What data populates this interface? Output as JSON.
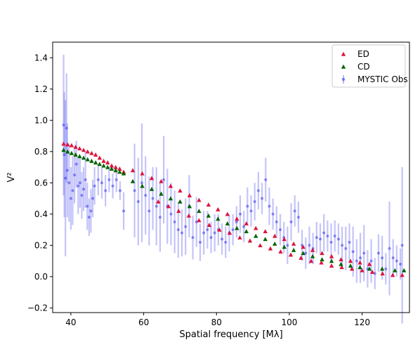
{
  "chart_data": {
    "type": "scatter",
    "title": "",
    "xlabel": "Spatial frequency [Mλ]",
    "ylabel": "V²",
    "xlim": [
      35,
      133
    ],
    "ylim": [
      -0.23,
      1.5
    ],
    "xticks": [
      {
        "value": 40,
        "label": "40"
      },
      {
        "value": 60,
        "label": "60"
      },
      {
        "value": 80,
        "label": "80"
      },
      {
        "value": 100,
        "label": "100"
      },
      {
        "value": 120,
        "label": "120"
      }
    ],
    "yticks": [
      {
        "value": -0.2,
        "label": "−0.2"
      },
      {
        "value": 0.0,
        "label": "0.0"
      },
      {
        "value": 0.2,
        "label": "0.2"
      },
      {
        "value": 0.4,
        "label": "0.4"
      },
      {
        "value": 0.6,
        "label": "0.6"
      },
      {
        "value": 0.8,
        "label": "0.8"
      },
      {
        "value": 1.0,
        "label": "1.0"
      },
      {
        "value": 1.2,
        "label": "1.2"
      },
      {
        "value": 1.4,
        "label": "1.4"
      }
    ],
    "grid": false,
    "legend_position": "top-right",
    "legend": [
      "ED",
      "CD",
      "MYSTIC Obs"
    ],
    "colors": {
      "ED": "#dc143c",
      "CD": "#006400",
      "MYSTIC Obs": "#3a3af0"
    },
    "series": [
      {
        "name": "ED",
        "marker": "triangle",
        "x": [
          38.0,
          39.1,
          40.2,
          41.3,
          42.4,
          43.5,
          44.6,
          45.7,
          46.8,
          47.9,
          49.0,
          50.1,
          51.2,
          52.3,
          53.4,
          54.5,
          57.0,
          59.6,
          62.2,
          64.8,
          67.4,
          70.0,
          72.6,
          75.2,
          77.8,
          80.4,
          83.0,
          85.6,
          88.2,
          90.8,
          93.4,
          96.0,
          98.6,
          101.2,
          103.8,
          106.4,
          109.0,
          111.6,
          114.2,
          116.8,
          119.4,
          122.0,
          64.0,
          66.8,
          69.6,
          72.4,
          75.2,
          78.0,
          80.8,
          83.6,
          86.4,
          89.2,
          92.0,
          94.8,
          97.6,
          100.4,
          103.2,
          106.0,
          108.8,
          111.6,
          114.4,
          117.2,
          120.0,
          122.8,
          125.6,
          128.4,
          131.0
        ],
        "y": [
          0.85,
          0.845,
          0.84,
          0.83,
          0.82,
          0.81,
          0.8,
          0.79,
          0.78,
          0.76,
          0.74,
          0.73,
          0.71,
          0.7,
          0.69,
          0.67,
          0.68,
          0.66,
          0.63,
          0.61,
          0.58,
          0.55,
          0.52,
          0.49,
          0.46,
          0.43,
          0.4,
          0.37,
          0.34,
          0.31,
          0.29,
          0.26,
          0.24,
          0.21,
          0.19,
          0.17,
          0.15,
          0.13,
          0.11,
          0.1,
          0.09,
          0.08,
          0.48,
          0.45,
          0.42,
          0.39,
          0.36,
          0.33,
          0.3,
          0.28,
          0.25,
          0.23,
          0.2,
          0.18,
          0.16,
          0.14,
          0.12,
          0.1,
          0.09,
          0.07,
          0.06,
          0.05,
          0.04,
          0.03,
          0.02,
          0.01,
          0.01
        ]
      },
      {
        "name": "CD",
        "marker": "triangle",
        "x": [
          38.0,
          39.1,
          40.2,
          41.3,
          42.4,
          43.5,
          44.6,
          45.7,
          46.8,
          47.9,
          49.0,
          50.1,
          51.2,
          52.3,
          53.4,
          54.5,
          57.0,
          59.6,
          62.2,
          64.8,
          67.4,
          70.0,
          72.6,
          75.2,
          77.8,
          80.4,
          83.0,
          85.6,
          88.2,
          90.8,
          93.4,
          96.0,
          98.6,
          101.2,
          103.8,
          106.4,
          109.0,
          111.6,
          114.2,
          116.8,
          119.4,
          122.0,
          125.5,
          129.0,
          131.5
        ],
        "y": [
          0.81,
          0.8,
          0.79,
          0.78,
          0.77,
          0.76,
          0.75,
          0.74,
          0.73,
          0.72,
          0.71,
          0.7,
          0.69,
          0.68,
          0.67,
          0.66,
          0.61,
          0.58,
          0.56,
          0.53,
          0.5,
          0.48,
          0.45,
          0.42,
          0.39,
          0.37,
          0.34,
          0.31,
          0.29,
          0.26,
          0.24,
          0.21,
          0.19,
          0.17,
          0.15,
          0.13,
          0.11,
          0.1,
          0.08,
          0.07,
          0.06,
          0.05,
          0.05,
          0.04,
          0.04
        ]
      },
      {
        "name": "MYSTIC Obs",
        "marker": "point-with-errorbar",
        "x": [
          38.0,
          38.2,
          38.5,
          38.8,
          39.0,
          39.5,
          40.0,
          40.5,
          41.0,
          41.5,
          42.0,
          42.5,
          43.0,
          43.5,
          44.0,
          44.5,
          45.0,
          45.5,
          46.0,
          46.5,
          47.5,
          48.5,
          49.5,
          50.5,
          51.5,
          52.5,
          53.5,
          54.5,
          57.5,
          58.5,
          59.5,
          60.5,
          61.5,
          62.5,
          63.5,
          64.5,
          65.5,
          66.5,
          67.5,
          68.5,
          69.5,
          70.5,
          71.5,
          72.5,
          73.5,
          74.5,
          75.5,
          76.5,
          77.5,
          78.5,
          79.5,
          80.5,
          81.5,
          82.5,
          83.5,
          84.5,
          85.5,
          86.5,
          87.5,
          88.5,
          89.5,
          90.5,
          91.5,
          92.5,
          93.5,
          94.5,
          95.5,
          96.5,
          97.5,
          98.5,
          99.5,
          100.5,
          101.5,
          102.5,
          103.5,
          104.5,
          105.5,
          106.5,
          107.5,
          108.5,
          109.5,
          110.5,
          111.5,
          112.5,
          113.5,
          114.5,
          115.5,
          116.5,
          117.5,
          118.5,
          119.5,
          120.5,
          121.5,
          122.5,
          123.5,
          124.5,
          125.5,
          126.5,
          127.5,
          128.5,
          129.5,
          130.5,
          131.0
        ],
        "y": [
          0.97,
          0.78,
          0.63,
          0.95,
          0.68,
          0.6,
          0.5,
          0.55,
          0.65,
          0.72,
          0.58,
          0.6,
          0.52,
          0.56,
          0.62,
          0.45,
          0.38,
          0.42,
          0.5,
          0.58,
          0.62,
          0.6,
          0.55,
          0.62,
          0.58,
          0.62,
          0.55,
          0.42,
          0.55,
          0.48,
          0.6,
          0.52,
          0.42,
          0.5,
          0.45,
          0.38,
          0.62,
          0.45,
          0.4,
          0.35,
          0.3,
          0.28,
          0.32,
          0.45,
          0.25,
          0.35,
          0.22,
          0.28,
          0.3,
          0.25,
          0.28,
          0.3,
          0.24,
          0.22,
          0.28,
          0.3,
          0.35,
          0.4,
          0.32,
          0.45,
          0.42,
          0.48,
          0.55,
          0.5,
          0.62,
          0.45,
          0.4,
          0.35,
          0.3,
          0.25,
          0.2,
          0.35,
          0.42,
          0.38,
          0.2,
          0.15,
          0.2,
          0.18,
          0.25,
          0.24,
          0.28,
          0.26,
          0.22,
          0.26,
          0.24,
          0.2,
          0.18,
          0.22,
          0.16,
          0.1,
          0.12,
          0.15,
          0.05,
          0.1,
          0.02,
          0.15,
          0.12,
          0.05,
          0.18,
          0.12,
          0.1,
          0.08,
          0.2
        ],
        "err": [
          0.45,
          0.4,
          0.5,
          0.35,
          0.3,
          0.25,
          0.2,
          0.22,
          0.18,
          0.15,
          0.18,
          0.16,
          0.15,
          0.14,
          0.18,
          0.15,
          0.12,
          0.14,
          0.12,
          0.12,
          0.1,
          0.1,
          0.1,
          0.08,
          0.08,
          0.08,
          0.06,
          0.12,
          0.3,
          0.28,
          0.38,
          0.25,
          0.22,
          0.2,
          0.25,
          0.22,
          0.28,
          0.24,
          0.2,
          0.2,
          0.18,
          0.15,
          0.18,
          0.2,
          0.14,
          0.16,
          0.12,
          0.14,
          0.12,
          0.1,
          0.12,
          0.1,
          0.1,
          0.1,
          0.12,
          0.1,
          0.1,
          0.12,
          0.1,
          0.12,
          0.1,
          0.12,
          0.12,
          0.1,
          0.14,
          0.12,
          0.1,
          0.1,
          0.1,
          0.1,
          0.12,
          0.12,
          0.1,
          0.1,
          0.1,
          0.1,
          0.12,
          0.1,
          0.1,
          0.1,
          0.12,
          0.1,
          0.12,
          0.1,
          0.1,
          0.12,
          0.14,
          0.12,
          0.16,
          0.14,
          0.16,
          0.18,
          0.12,
          0.14,
          0.1,
          0.12,
          0.14,
          0.1,
          0.3,
          0.12,
          0.1,
          0.1,
          0.5
        ]
      }
    ]
  }
}
